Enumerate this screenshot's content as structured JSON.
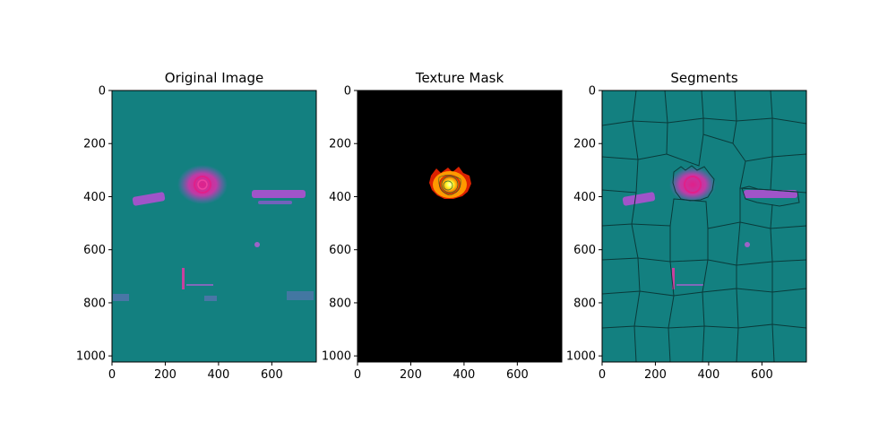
{
  "chart_data": [
    {
      "type": "heatmap",
      "title": "Original Image",
      "xlabel": "",
      "ylabel": "",
      "xlim": [
        0,
        767
      ],
      "ylim": [
        1023,
        0
      ],
      "xticks": [
        0,
        200,
        400,
        600
      ],
      "yticks": [
        0,
        200,
        400,
        600,
        800,
        1000
      ],
      "background_color": "#138080",
      "features": [
        {
          "kind": "blob",
          "x": 340,
          "y": 355,
          "rx": 80,
          "ry": 60,
          "color": "#c03aa6"
        },
        {
          "kind": "band",
          "x": [
            80,
            200
          ],
          "y": [
            395,
            430
          ],
          "color": "#b04fd0"
        },
        {
          "kind": "band",
          "x": [
            525,
            730
          ],
          "y": [
            380,
            415
          ],
          "color": "#b04fd0"
        },
        {
          "kind": "spot",
          "x": 545,
          "y": 580,
          "color": "#9d63c8"
        },
        {
          "kind": "streak",
          "x": [
            265,
            275
          ],
          "y": [
            660,
            760
          ],
          "color": "#c8409e"
        }
      ]
    },
    {
      "type": "heatmap",
      "title": "Texture Mask",
      "xlabel": "",
      "ylabel": "",
      "xlim": [
        0,
        767
      ],
      "ylim": [
        1023,
        0
      ],
      "xticks": [
        0,
        200,
        400,
        600
      ],
      "yticks": [
        0,
        200,
        400,
        600,
        800,
        1000
      ],
      "background_color": "#000000",
      "features": [
        {
          "kind": "hotspot",
          "x": 345,
          "y": 355,
          "rx": 70,
          "ry": 65,
          "colors": [
            "#ffff66",
            "#ff9900",
            "#dd2200"
          ]
        }
      ]
    },
    {
      "type": "heatmap",
      "title": "Segments",
      "xlabel": "",
      "ylabel": "",
      "xlim": [
        0,
        767
      ],
      "ylim": [
        1023,
        0
      ],
      "xticks": [
        0,
        200,
        400,
        600
      ],
      "yticks": [
        0,
        200,
        400,
        600,
        800,
        1000
      ],
      "background_color": "#138080",
      "boundary_color": "#0a3a3a"
    }
  ]
}
